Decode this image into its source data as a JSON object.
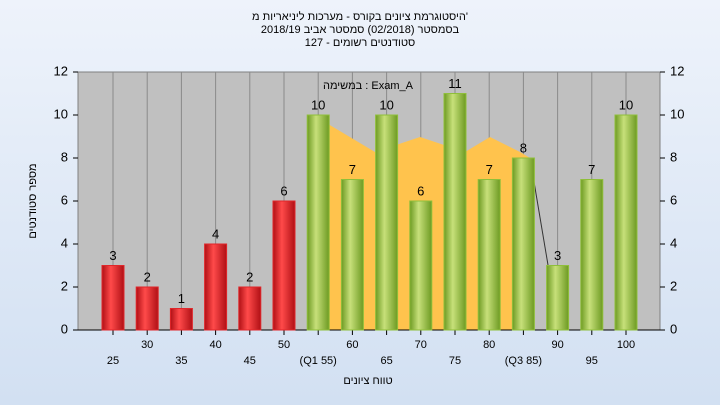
{
  "chart_data": {
    "type": "bar",
    "title": "היסטוגרמת ציונים בקורס - מערכות ליניאריות מ'",
    "subtitle": "בסמסטר  (02/2018)  סמסטר אביב 2018/19",
    "subtitle2": "127 - סטודנטים רשומים",
    "annotation": "במשימה : Exam_A",
    "x_label": "טווח ציונים",
    "y_label": "מספר סטודנטים",
    "categories": [
      "25",
      "30",
      "35",
      "40",
      "45",
      "50",
      "(Q1 55)",
      "60",
      "65",
      "70",
      "75",
      "80",
      "(Q3 85)",
      "90",
      "95",
      "100"
    ],
    "values": [
      3,
      2,
      1,
      4,
      2,
      6,
      10,
      7,
      10,
      6,
      11,
      7,
      8,
      3,
      7,
      10
    ],
    "colors": [
      "#e0262a",
      "#e0262a",
      "#e0262a",
      "#e0262a",
      "#e0262a",
      "#e0262a",
      "#8fbf3a",
      "#8fbf3a",
      "#8fbf3a",
      "#8fbf3a",
      "#8fbf3a",
      "#8fbf3a",
      "#8fbf3a",
      "#8fbf3a",
      "#8fbf3a",
      "#8fbf3a"
    ],
    "ylim": [
      0,
      12
    ],
    "yticks": [
      0,
      2,
      4,
      6,
      8,
      10,
      12
    ],
    "y2lim": [
      0,
      12
    ],
    "y2ticks": [
      0,
      2,
      4,
      6,
      8,
      10,
      12
    ]
  }
}
